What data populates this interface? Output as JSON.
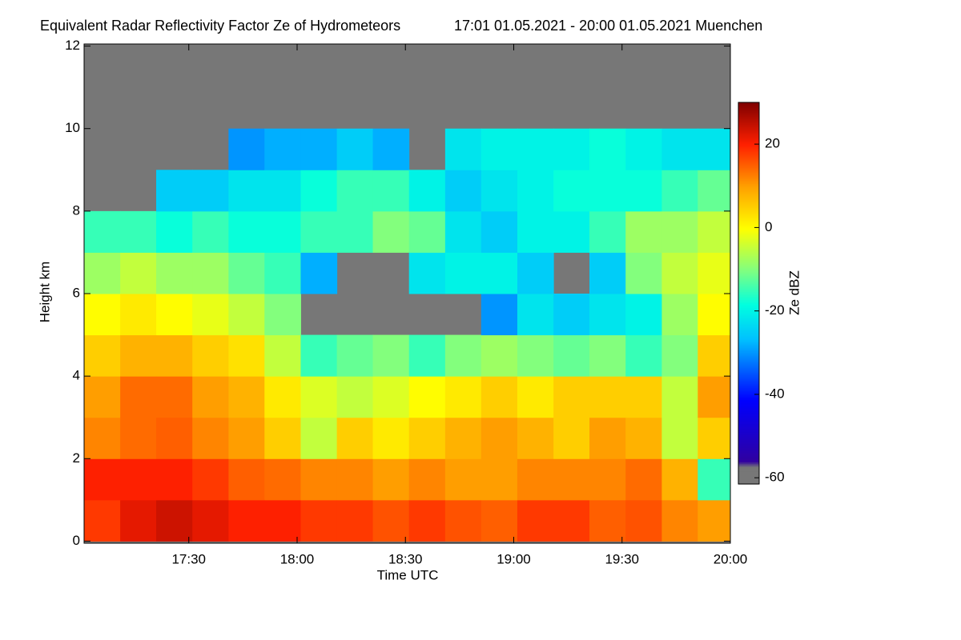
{
  "chart_data": {
    "type": "heatmap",
    "title": "Equivalent Radar Reflectivity Factor Ze of Hydrometeors",
    "subtitle": "17:01 01.05.2021 - 20:00 01.05.2021 Muenchen",
    "x_label": "Time UTC",
    "y_label": "Height km",
    "colorbar_label": "Ze dBZ",
    "x": [
      17.1,
      17.267,
      17.433,
      17.6,
      17.767,
      17.933,
      18.1,
      18.267,
      18.433,
      18.6,
      18.767,
      18.933,
      19.1,
      19.267,
      19.433,
      19.6,
      19.767,
      19.933
    ],
    "y": [
      0.5,
      1.5,
      2.5,
      3.5,
      4.5,
      5.5,
      6.5,
      7.5,
      8.5,
      9.5,
      10.5,
      11.5
    ],
    "z": [
      [
        18,
        20,
        12,
        10,
        5,
        0,
        -8,
        -15,
        null,
        null,
        null,
        null
      ],
      [
        22,
        20,
        14,
        14,
        8,
        2,
        -5,
        -15,
        null,
        null,
        null,
        null
      ],
      [
        24,
        20,
        15,
        14,
        8,
        0,
        -8,
        -18,
        -25,
        null,
        null,
        null
      ],
      [
        22,
        18,
        12,
        10,
        5,
        -2,
        -8,
        -15,
        -25,
        null,
        null,
        null
      ],
      [
        20,
        15,
        10,
        8,
        3,
        -5,
        -12,
        -18,
        -22,
        -30,
        null,
        null
      ],
      [
        20,
        14,
        5,
        2,
        -5,
        -10,
        -15,
        -18,
        -22,
        -28,
        null,
        null
      ],
      [
        18,
        12,
        -5,
        -3,
        -15,
        null,
        -28,
        -15,
        -18,
        -28,
        null,
        null
      ],
      [
        18,
        12,
        5,
        -5,
        -12,
        null,
        null,
        -15,
        -15,
        -25,
        null,
        null
      ],
      [
        16,
        10,
        2,
        -3,
        -10,
        null,
        null,
        -10,
        -15,
        -28,
        null,
        null
      ],
      [
        18,
        12,
        5,
        0,
        -15,
        null,
        -22,
        -12,
        -20,
        null,
        null,
        null
      ],
      [
        16,
        10,
        8,
        2,
        -10,
        null,
        -20,
        -22,
        -25,
        -22,
        null,
        null
      ],
      [
        15,
        10,
        10,
        5,
        -8,
        -30,
        -20,
        -25,
        -22,
        -20,
        null,
        null
      ],
      [
        18,
        12,
        8,
        2,
        -10,
        -22,
        -25,
        -20,
        -20,
        -20,
        null,
        null
      ],
      [
        18,
        12,
        5,
        5,
        -12,
        -25,
        null,
        -20,
        -18,
        -20,
        null,
        null
      ],
      [
        15,
        12,
        10,
        5,
        -10,
        -22,
        -25,
        -15,
        -18,
        -18,
        null,
        null
      ],
      [
        16,
        14,
        8,
        5,
        -15,
        -20,
        -10,
        -8,
        -18,
        -20,
        null,
        null
      ],
      [
        12,
        8,
        -5,
        -5,
        -10,
        -8,
        -5,
        -8,
        -15,
        -22,
        null,
        null
      ],
      [
        10,
        -15,
        5,
        10,
        5,
        0,
        -2,
        -5,
        -12,
        -22,
        null,
        null
      ]
    ],
    "xlim": [
      17.0167,
      20.0
    ],
    "xticks": [
      {
        "value": 17.5,
        "label": "17:30"
      },
      {
        "value": 18.0,
        "label": "18:00"
      },
      {
        "value": 18.5,
        "label": "18:30"
      },
      {
        "value": 19.0,
        "label": "19:00"
      },
      {
        "value": 19.5,
        "label": "19:30"
      },
      {
        "value": 20.0,
        "label": "20:00"
      }
    ],
    "ylim": [
      -0.05,
      12.05
    ],
    "yticks": [
      0,
      2,
      4,
      6,
      8,
      10,
      12
    ],
    "zlim": [
      -61.5,
      30
    ],
    "zticks": [
      -60,
      -40,
      -20,
      0,
      20
    ],
    "no_data_color": "#777777"
  }
}
